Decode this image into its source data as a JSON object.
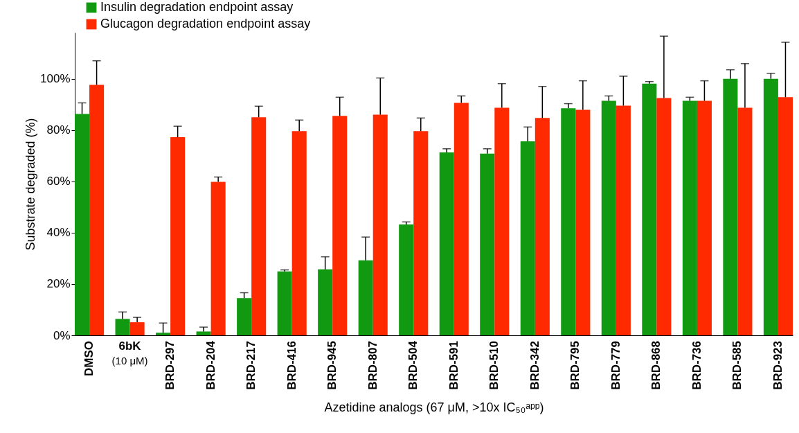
{
  "chart_data": {
    "type": "bar",
    "xlabel": "Azetidine analogs (67 μM, >10x IC₅₀ᵃᵖᵖ)",
    "ylabel": "Substrate degraded (%)",
    "categories": [
      "DMSO",
      "6bK\n(10 μM)",
      "BRD-297",
      "BRD-204",
      "BRD-217",
      "BRD-416",
      "BRD-945",
      "BRD-807",
      "BRD-504",
      "BRD-591",
      "BRD-510",
      "BRD-342",
      "BRD-795",
      "BRD-779",
      "BRD-868",
      "BRD-736",
      "BRD-585",
      "BRD-923"
    ],
    "series": [
      {
        "name": "Insulin degradation endpoint assay",
        "color": "#119a11",
        "values": [
          86.3,
          6.4,
          1,
          1.5,
          14.5,
          24.9,
          25.7,
          29.2,
          43.2,
          71.3,
          70.8,
          75.6,
          88.5,
          91.4,
          98.1,
          91.4,
          100,
          100
        ],
        "errors": [
          [
            86.3,
            90.6
          ],
          [
            6.4,
            9.1
          ],
          [
            1,
            4.8
          ],
          [
            1.5,
            3.2
          ],
          [
            14.5,
            16.6
          ],
          [
            24.9,
            25.5
          ],
          [
            25.7,
            30.6
          ],
          [
            29.2,
            38.3
          ],
          [
            43.2,
            44.2
          ],
          [
            71.3,
            72.7
          ],
          [
            70.8,
            72.7
          ],
          [
            75.6,
            81.2
          ],
          [
            88.5,
            90.3
          ],
          [
            91.4,
            93.3
          ],
          [
            98.1,
            98.9
          ],
          [
            91.4,
            92.8
          ],
          [
            100,
            103.5
          ],
          [
            100,
            102.1
          ]
        ]
      },
      {
        "name": "Glucagon degradation endpoint assay",
        "color": "#ff2a00",
        "values": [
          97.6,
          5.1,
          77.2,
          59.8,
          85,
          79.6,
          85.5,
          86,
          79.6,
          90.6,
          88.7,
          84.7,
          87.9,
          89.5,
          92.5,
          91.4,
          88.7,
          92.8
        ],
        "errors": [
          [
            97.6,
            107
          ],
          [
            5.1,
            7
          ],
          [
            77.2,
            81.5
          ],
          [
            59.8,
            61.7
          ],
          [
            85,
            89.3
          ],
          [
            79.6,
            83.9
          ],
          [
            85.5,
            92.8
          ],
          [
            86,
            100.3
          ],
          [
            79.6,
            84.7
          ],
          [
            90.6,
            93.3
          ],
          [
            88.7,
            98.1
          ],
          [
            84.7,
            97
          ],
          [
            87.9,
            99.2
          ],
          [
            89.5,
            101
          ],
          [
            92.5,
            116.6
          ],
          [
            91.4,
            99.2
          ],
          [
            88.7,
            105.9
          ],
          [
            92.8,
            114.2
          ]
        ]
      }
    ],
    "ylim": [
      0,
      118
    ],
    "yticks": [
      {
        "value": 0,
        "label": "0%"
      },
      {
        "value": 20,
        "label": "20%"
      },
      {
        "value": 40,
        "label": "40%"
      },
      {
        "value": 60,
        "label": "60%"
      },
      {
        "value": 80,
        "label": "80%"
      },
      {
        "value": 100,
        "label": "100%"
      }
    ],
    "grid": false,
    "legend": "top left"
  }
}
